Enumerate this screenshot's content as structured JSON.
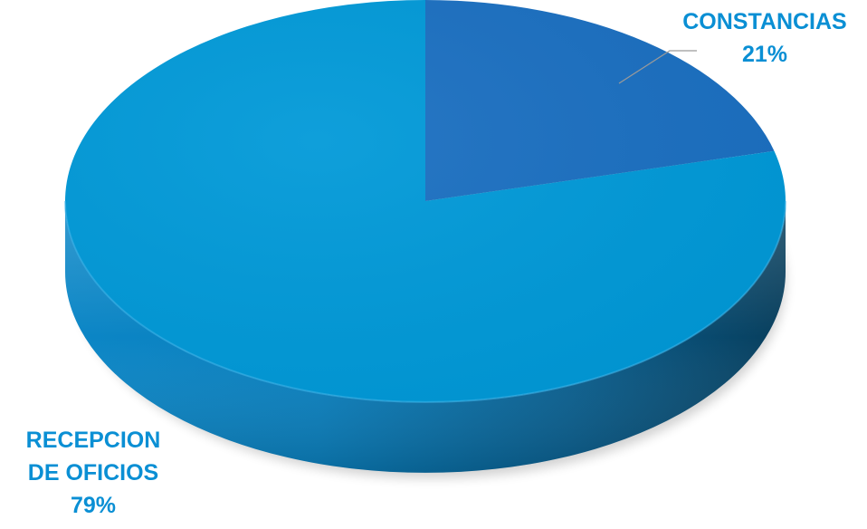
{
  "chart_data": {
    "type": "pie",
    "style": "3d",
    "title": "",
    "slices": [
      {
        "label_lines": [
          "CONSTANCIAS"
        ],
        "percent_label": "21%",
        "value": 21,
        "color": "#1a6fc1"
      },
      {
        "label_lines": [
          "RECEPCION",
          "DE OFICIOS"
        ],
        "percent_label": "79%",
        "value": 79,
        "color": "#0099d8"
      }
    ],
    "label_color": "#0a8fd4",
    "legend": "none"
  }
}
